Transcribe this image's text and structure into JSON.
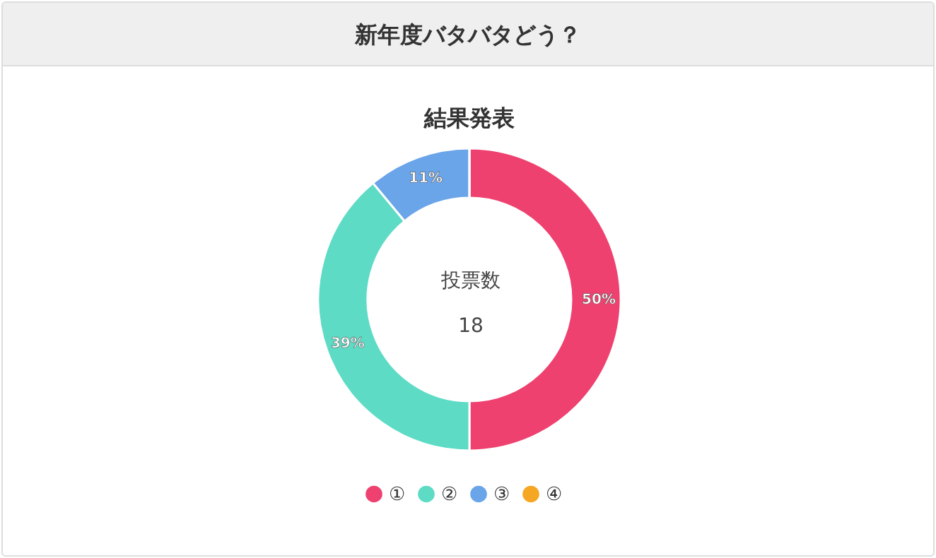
{
  "chart_data": {
    "type": "donut",
    "title": "新年度バタバタどう？",
    "subtitle": "結果発表",
    "categories": [
      "①",
      "②",
      "③",
      "④"
    ],
    "values": [
      50,
      39,
      11,
      0
    ],
    "colors": [
      "#ef416f",
      "#5ddbc5",
      "#6aa4e9",
      "#f5a623"
    ],
    "value_labels": [
      "50%",
      "39%",
      "11%",
      null
    ],
    "annotations": [
      "投票数",
      "18"
    ],
    "legend": "bottom"
  }
}
